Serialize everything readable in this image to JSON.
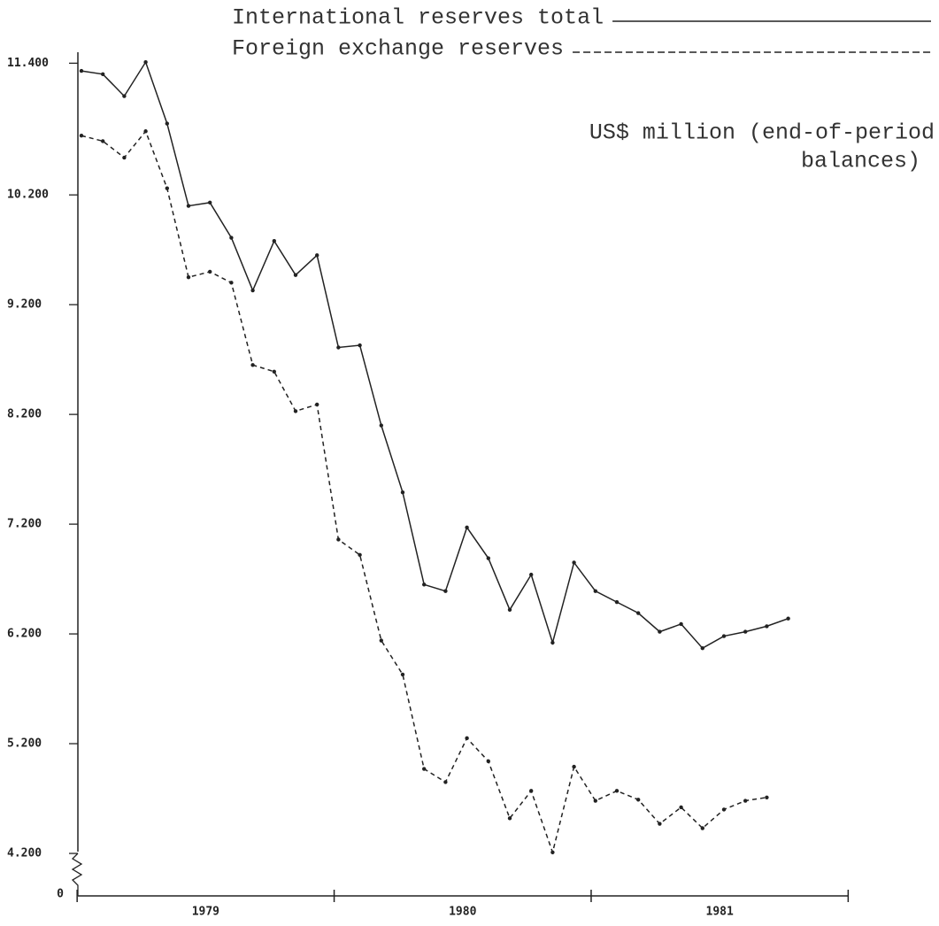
{
  "chart_data": {
    "type": "line",
    "legend_labels_note": null,
    "subtitle_lines": [
      "US$ million (end-of-period",
      "balances)"
    ],
    "years": [
      "1979",
      "1980",
      "1981"
    ],
    "y_break_label": "0",
    "ylim": [
      3813,
      11500
    ],
    "yticks": [
      {
        "value": 4200,
        "label": "4.200"
      },
      {
        "value": 5200,
        "label": "5.200"
      },
      {
        "value": 6200,
        "label": "6.200"
      },
      {
        "value": 7200,
        "label": "7.200"
      },
      {
        "value": 8200,
        "label": "8.200"
      },
      {
        "value": 9200,
        "label": "9.200"
      },
      {
        "value": 10200,
        "label": "10.200"
      },
      {
        "value": 11400,
        "label": "11.400"
      }
    ],
    "series": [
      {
        "name": "International reserves total",
        "color": "#222222",
        "dashed": false,
        "values": [
          11330,
          11300,
          11100,
          11410,
          10850,
          10100,
          10130,
          9810,
          9330,
          9780,
          9470,
          9650,
          8810,
          8830,
          8100,
          7490,
          6650,
          6590,
          7170,
          6890,
          6420,
          6740,
          6120,
          6850,
          6590,
          6490,
          6390,
          6220,
          6290,
          6070,
          6180,
          6220,
          6270,
          6340,
          null,
          null
        ]
      },
      {
        "name": "Foreign exchange reserves",
        "color": "#222222",
        "dashed": true,
        "values": [
          10740,
          10690,
          10540,
          10780,
          10260,
          9450,
          9500,
          9400,
          8650,
          8590,
          8230,
          8290,
          7060,
          6920,
          6140,
          5830,
          4970,
          4850,
          5250,
          5040,
          4520,
          4770,
          4210,
          4990,
          4680,
          4770,
          4690,
          4470,
          4620,
          4430,
          4600,
          4680,
          4710,
          null,
          null,
          null
        ]
      }
    ]
  }
}
